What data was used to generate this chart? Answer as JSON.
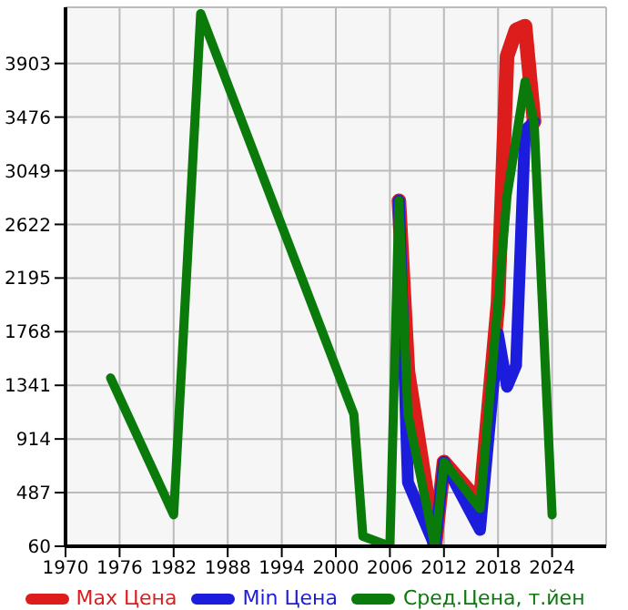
{
  "chart_data": {
    "type": "line",
    "x": [
      1975,
      1982,
      1985,
      2002,
      2003,
      2006,
      2007,
      2008,
      2011,
      2012,
      2016,
      2018,
      2019,
      2020,
      2021,
      2022,
      2024
    ],
    "series": [
      {
        "name": "Max Цена",
        "color": "#dd1c1c",
        "values": [
          null,
          null,
          null,
          null,
          null,
          null,
          2810,
          1450,
          60,
          730,
          400,
          2000,
          3960,
          4170,
          4200,
          3440,
          null
        ]
      },
      {
        "name": "Min Цена",
        "color": "#1c1cdd",
        "values": [
          null,
          null,
          null,
          null,
          null,
          null,
          2810,
          570,
          60,
          730,
          190,
          1750,
          1330,
          1500,
          3370,
          3440,
          null
        ]
      },
      {
        "name": "Сред.Цена, т.йен",
        "color": "#0a7a0a",
        "values": [
          1400,
          310,
          4300,
          1110,
          140,
          60,
          2810,
          1110,
          60,
          730,
          360,
          2000,
          2850,
          3300,
          3760,
          3440,
          310
        ]
      }
    ],
    "xlim": [
      1970,
      2030
    ],
    "xticks": [
      1970,
      1976,
      1982,
      1988,
      1994,
      2000,
      2006,
      2012,
      2018,
      2024
    ],
    "ylim": [
      60,
      4350
    ],
    "yticks": [
      60,
      487,
      914,
      1341,
      1768,
      2195,
      2622,
      3049,
      3476,
      3903
    ],
    "grid": true,
    "legend": "bottom",
    "marker": "none",
    "line_style": "solid"
  }
}
